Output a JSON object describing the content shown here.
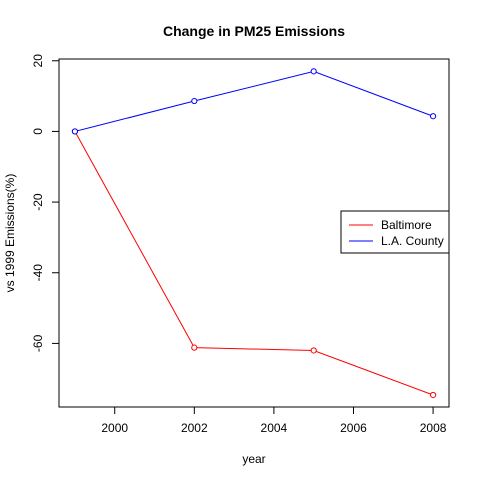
{
  "chart_data": {
    "type": "line",
    "title": "Change in PM25 Emissions",
    "xlabel": "year",
    "ylabel": "vs 1999 Emissions(%)",
    "x": [
      1999,
      2002,
      2005,
      2008
    ],
    "xlim": [
      1998.6,
      2008.4
    ],
    "ylim": [
      -78,
      20.5
    ],
    "x_ticks": [
      2000,
      2002,
      2004,
      2006,
      2008
    ],
    "y_ticks": [
      -60,
      -40,
      -20,
      0,
      20
    ],
    "grid": false,
    "legend_position": "right",
    "series": [
      {
        "name": "Baltimore",
        "color": "#ff0000",
        "values": [
          0,
          -61.2,
          -62.0,
          -74.6
        ]
      },
      {
        "name": "L.A. County",
        "color": "#0000ff",
        "values": [
          0,
          8.6,
          17.0,
          4.3
        ]
      }
    ]
  }
}
